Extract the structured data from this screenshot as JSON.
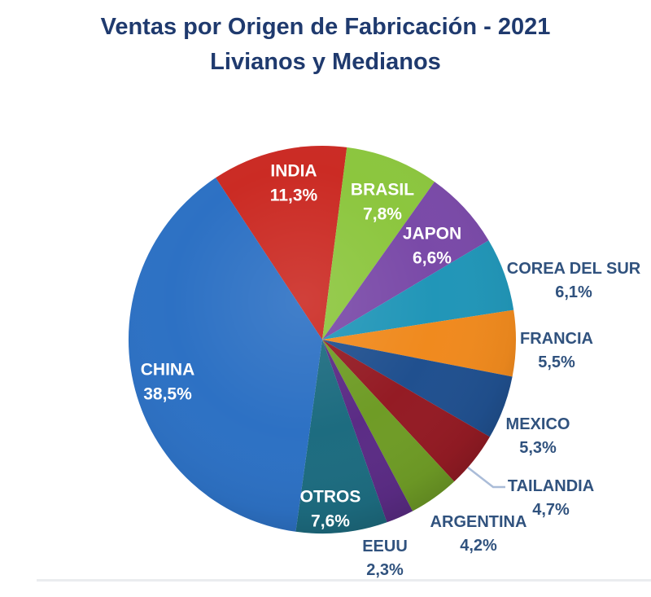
{
  "title": {
    "line1": "Ventas por Origen de Fabricación - 2021",
    "line2": "Livianos y Medianos"
  },
  "chart_data": {
    "type": "pie",
    "title": "Ventas por Origen de Fabricación - 2021 Livianos y Medianos",
    "unit": "%",
    "decimal_style": "comma",
    "direction": "clockwise",
    "start_angle_deg": -33.4,
    "legend": "none (labels on/around slices)",
    "slices": [
      {
        "label": "INDIA",
        "value": 11.3,
        "pct": "11,3%",
        "color": "#CB2B24",
        "label_placement": "inside"
      },
      {
        "label": "BRASIL",
        "value": 7.8,
        "pct": "7,8%",
        "color": "#8CC63E",
        "label_placement": "inside"
      },
      {
        "label": "JAPON",
        "value": 6.6,
        "pct": "6,6%",
        "color": "#7A4AA8",
        "label_placement": "inside"
      },
      {
        "label": "COREA DEL SUR",
        "value": 6.1,
        "pct": "6,1%",
        "color": "#2196B8",
        "label_placement": "outside"
      },
      {
        "label": "FRANCIA",
        "value": 5.5,
        "pct": "5,5%",
        "color": "#F08A1E",
        "label_placement": "outside"
      },
      {
        "label": "MEXICO",
        "value": 5.3,
        "pct": "5,3%",
        "color": "#20508F",
        "label_placement": "outside"
      },
      {
        "label": "TAILANDIA",
        "value": 4.7,
        "pct": "4,7%",
        "color": "#941B24",
        "label_placement": "outside-with-leader-line"
      },
      {
        "label": "ARGENTINA",
        "value": 4.2,
        "pct": "4,2%",
        "color": "#6F9C26",
        "label_placement": "outside"
      },
      {
        "label": "EEUU",
        "value": 2.3,
        "pct": "2,3%",
        "color": "#5B2C85",
        "label_placement": "outside"
      },
      {
        "label": "OTROS",
        "value": 7.6,
        "pct": "7,6%",
        "color": "#1D6C80",
        "label_placement": "inside"
      },
      {
        "label": "CHINA",
        "value": 38.5,
        "pct": "38,5%",
        "color": "#2D71C4",
        "label_placement": "inside"
      }
    ]
  },
  "colors": {
    "background": "#FFFFFF",
    "title_text": "#1F3A6E",
    "outside_label_text": "#30527E",
    "inside_label_text": "#FFFFFF",
    "leader_line": "#AABCD8"
  }
}
